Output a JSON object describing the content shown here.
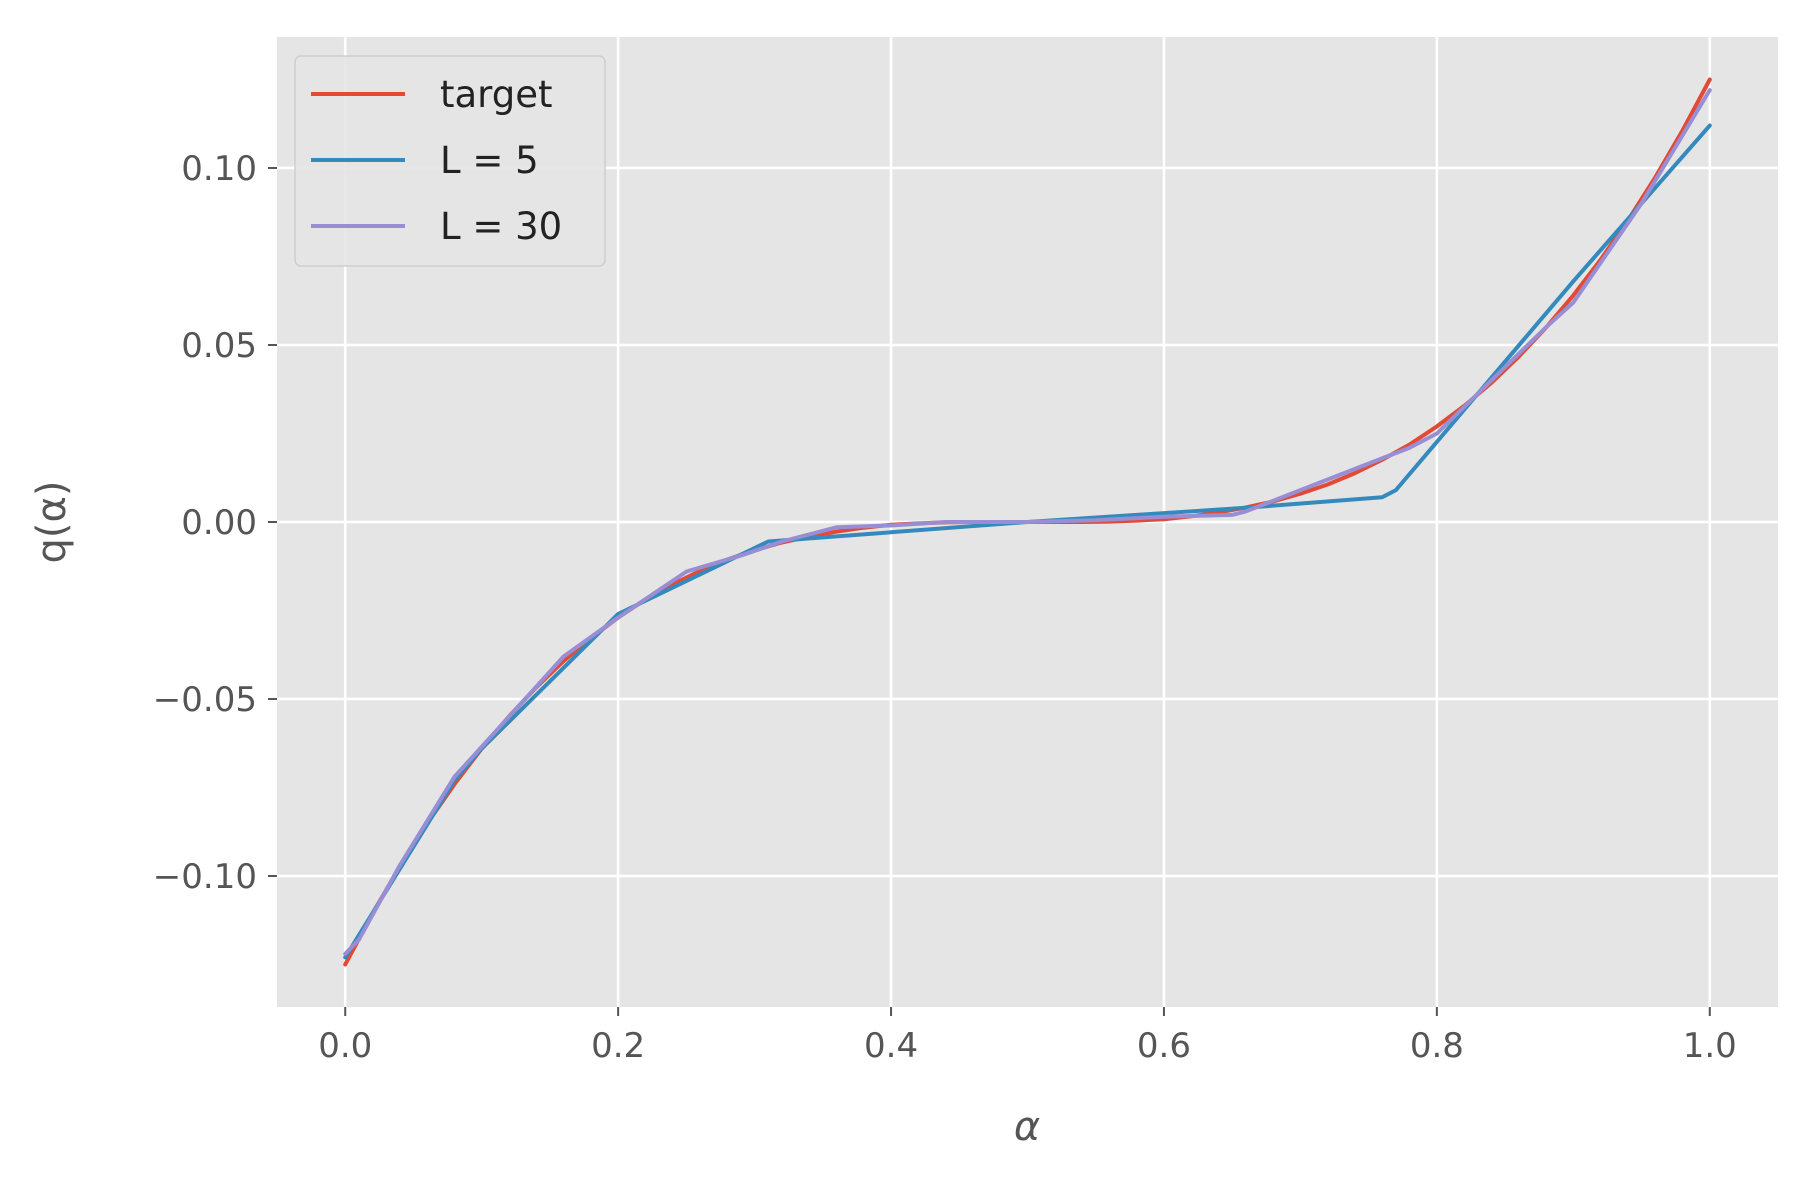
{
  "chart_data": {
    "type": "line",
    "title": "",
    "xlabel": "α",
    "ylabel": "q(α)",
    "xlim": [
      -0.05,
      1.05
    ],
    "ylim": [
      -0.137,
      0.137
    ],
    "xticks": [
      0.0,
      0.2,
      0.4,
      0.6,
      0.8,
      1.0
    ],
    "xtick_labels": [
      "0.0",
      "0.2",
      "0.4",
      "0.6",
      "0.8",
      "1.0"
    ],
    "yticks": [
      -0.1,
      -0.05,
      0.0,
      0.05,
      0.1
    ],
    "ytick_labels": [
      "−0.10",
      "−0.05",
      "0.00",
      "0.05",
      "0.10"
    ],
    "grid": true,
    "legend_position": "top-left",
    "series": [
      {
        "name": "target",
        "color": "#E24A33",
        "x": [
          0.0,
          0.02,
          0.04,
          0.06,
          0.08,
          0.1,
          0.12,
          0.14,
          0.16,
          0.18,
          0.2,
          0.22,
          0.24,
          0.26,
          0.28,
          0.3,
          0.32,
          0.34,
          0.36,
          0.38,
          0.4,
          0.42,
          0.44,
          0.46,
          0.48,
          0.5,
          0.52,
          0.54,
          0.56,
          0.58,
          0.6,
          0.62,
          0.64,
          0.66,
          0.68,
          0.7,
          0.72,
          0.74,
          0.76,
          0.78,
          0.8,
          0.82,
          0.84,
          0.86,
          0.88,
          0.9,
          0.92,
          0.94,
          0.96,
          0.98,
          1.0
        ],
        "y": [
          -0.125,
          -0.1106,
          -0.0973,
          -0.0852,
          -0.0741,
          -0.064,
          -0.0549,
          -0.0467,
          -0.0393,
          -0.0328,
          -0.027,
          -0.0219,
          -0.0176,
          -0.0138,
          -0.0106,
          -0.008,
          -0.0058,
          -0.0041,
          -0.0027,
          -0.0016,
          -0.0008,
          -0.0004,
          -0.0001,
          0.0,
          0.0,
          0.0,
          0.0,
          0.0,
          0.0001,
          0.0004,
          0.0008,
          0.0016,
          0.0027,
          0.0041,
          0.0058,
          0.008,
          0.0106,
          0.0138,
          0.0176,
          0.0219,
          0.027,
          0.0328,
          0.0393,
          0.0467,
          0.0549,
          0.064,
          0.0741,
          0.0852,
          0.0973,
          0.1106,
          0.125
        ]
      },
      {
        "name": "L = 5",
        "color": "#348ABD",
        "x": [
          0.0,
          0.08,
          0.1,
          0.2,
          0.31,
          0.5,
          0.66,
          0.76,
          0.77,
          0.9,
          1.0
        ],
        "y": [
          -0.123,
          -0.073,
          -0.064,
          -0.026,
          -0.0055,
          0.0,
          0.004,
          0.007,
          0.009,
          0.068,
          0.112
        ]
      },
      {
        "name": "L = 30",
        "color": "#988ED5",
        "x": [
          0.0,
          0.01,
          0.04,
          0.08,
          0.12,
          0.16,
          0.2,
          0.25,
          0.29,
          0.32,
          0.36,
          0.4,
          0.44,
          0.5,
          0.55,
          0.6,
          0.65,
          0.66,
          0.7,
          0.74,
          0.78,
          0.8,
          0.84,
          0.88,
          0.9,
          0.95,
          1.0
        ],
        "y": [
          -0.122,
          -0.118,
          -0.097,
          -0.072,
          -0.055,
          -0.038,
          -0.027,
          -0.014,
          -0.0095,
          -0.0055,
          -0.0015,
          -0.001,
          0.0,
          0.0,
          0.0005,
          0.0015,
          0.002,
          0.003,
          0.009,
          0.015,
          0.021,
          0.025,
          0.04,
          0.055,
          0.062,
          0.09,
          0.122
        ]
      }
    ]
  }
}
